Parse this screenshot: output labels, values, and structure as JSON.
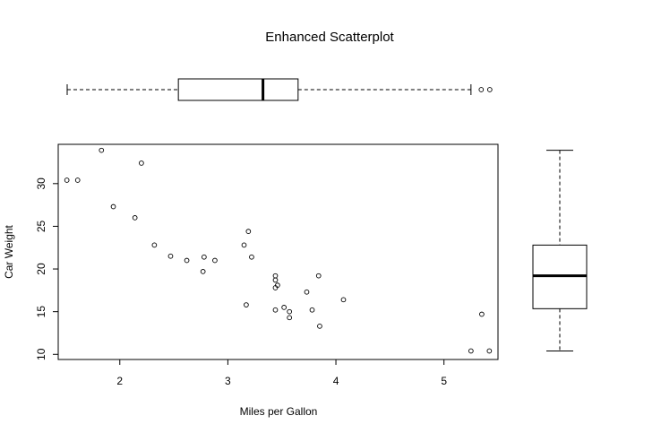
{
  "chart_data": {
    "type": "scatter",
    "title": "Enhanced Scatterplot",
    "xlabel": "Miles per Gallon",
    "ylabel": "Car Weight",
    "xlim": [
      1.43,
      5.5
    ],
    "ylim": [
      9.4,
      34.6
    ],
    "x_ticks": [
      2,
      3,
      4,
      5
    ],
    "y_ticks": [
      10,
      15,
      20,
      25,
      30
    ],
    "grid": false,
    "points": [
      {
        "x": 1.51,
        "y": 30.4
      },
      {
        "x": 1.61,
        "y": 30.4
      },
      {
        "x": 1.83,
        "y": 33.9
      },
      {
        "x": 1.94,
        "y": 27.3
      },
      {
        "x": 2.14,
        "y": 26.0
      },
      {
        "x": 2.2,
        "y": 32.4
      },
      {
        "x": 2.32,
        "y": 22.8
      },
      {
        "x": 2.47,
        "y": 21.5
      },
      {
        "x": 2.62,
        "y": 21.0
      },
      {
        "x": 2.77,
        "y": 19.7
      },
      {
        "x": 2.78,
        "y": 21.4
      },
      {
        "x": 2.88,
        "y": 21.0
      },
      {
        "x": 3.15,
        "y": 22.8
      },
      {
        "x": 3.17,
        "y": 15.8
      },
      {
        "x": 3.19,
        "y": 24.4
      },
      {
        "x": 3.22,
        "y": 21.4
      },
      {
        "x": 3.44,
        "y": 19.2
      },
      {
        "x": 3.44,
        "y": 18.7
      },
      {
        "x": 3.44,
        "y": 17.8
      },
      {
        "x": 3.44,
        "y": 15.2
      },
      {
        "x": 3.46,
        "y": 18.1
      },
      {
        "x": 3.52,
        "y": 15.5
      },
      {
        "x": 3.57,
        "y": 15.0
      },
      {
        "x": 3.57,
        "y": 14.3
      },
      {
        "x": 3.73,
        "y": 17.3
      },
      {
        "x": 3.78,
        "y": 15.2
      },
      {
        "x": 3.84,
        "y": 19.2
      },
      {
        "x": 3.85,
        "y": 13.3
      },
      {
        "x": 4.07,
        "y": 16.4
      },
      {
        "x": 5.25,
        "y": 10.4
      },
      {
        "x": 5.35,
        "y": 14.7
      },
      {
        "x": 5.42,
        "y": 10.4
      }
    ],
    "x_boxplot": {
      "min": 1.513,
      "q1": 2.542,
      "median": 3.325,
      "q3": 3.65,
      "max": 5.25,
      "outliers": [
        5.345,
        5.424
      ]
    },
    "y_boxplot": {
      "min": 10.4,
      "q1": 15.35,
      "median": 19.2,
      "q3": 22.8,
      "max": 33.9
    }
  }
}
